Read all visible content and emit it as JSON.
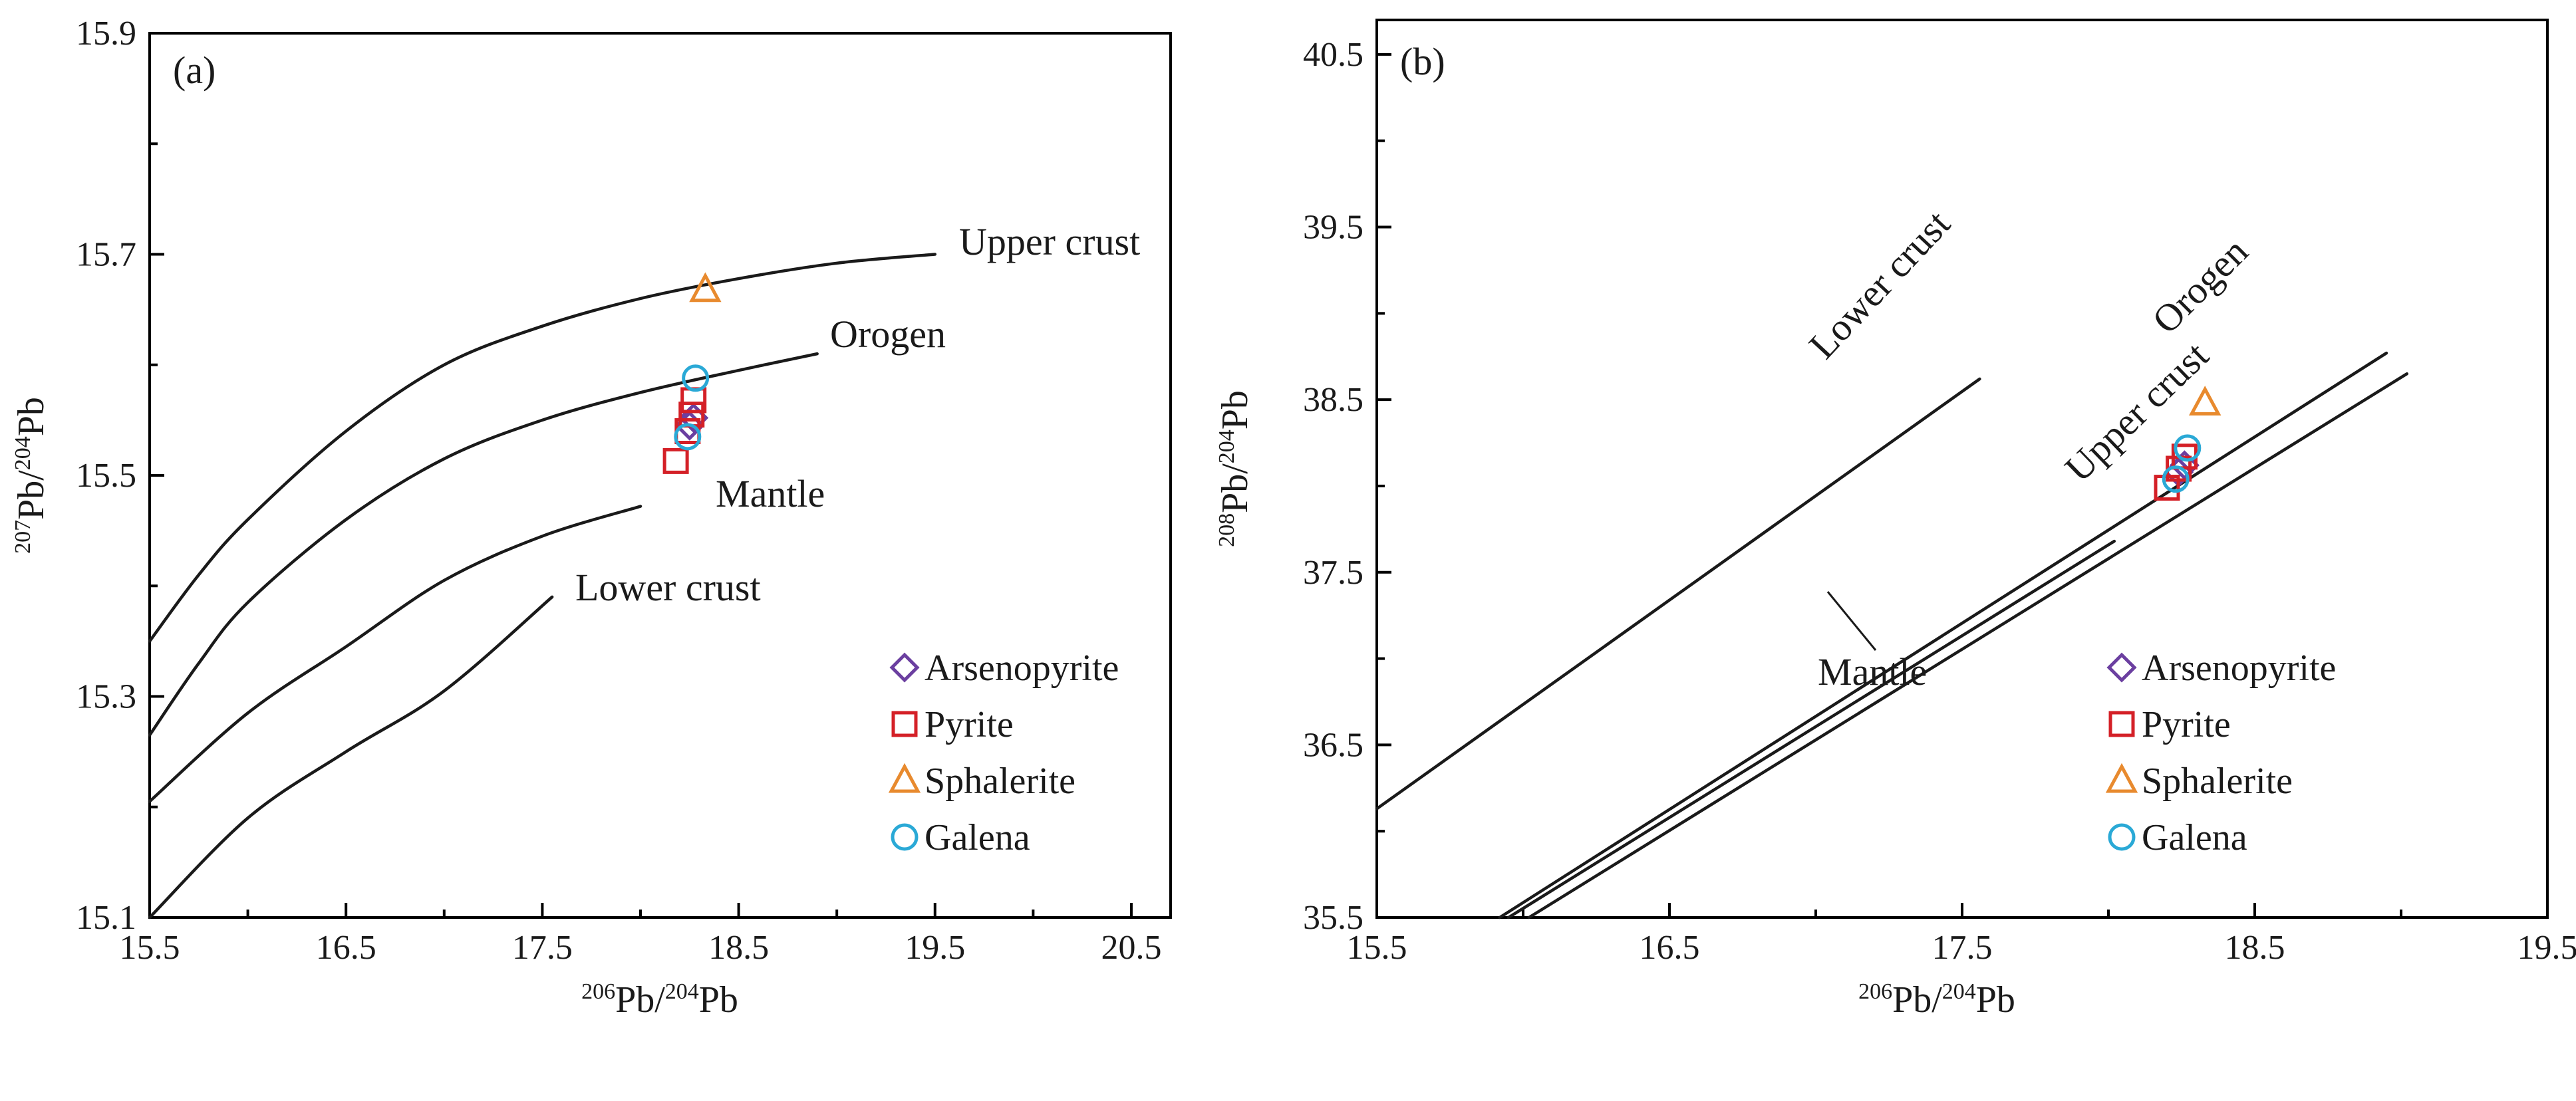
{
  "colors": {
    "arsenopyrite": "#6b3fa0",
    "pyrite": "#d42027",
    "sphalerite": "#e88a2e",
    "galena": "#2aa9d6",
    "curve": "#1a1a1a"
  },
  "legend": [
    "Arsenopyrite",
    "Pyrite",
    "Sphalerite",
    "Galena"
  ],
  "chart_data": [
    {
      "type": "scatter",
      "panel_label": "(a)",
      "xlabel": {
        "sup": "206",
        "main": "Pb/",
        "sup2": "204",
        "tail": "Pb"
      },
      "ylabel": {
        "sup": "207",
        "main": "Pb/",
        "sup2": "204",
        "tail": "Pb"
      },
      "xlim": [
        15.5,
        20.7
      ],
      "ylim": [
        15.1,
        15.9
      ],
      "xticks": [
        "15.5",
        "16.5",
        "17.5",
        "18.5",
        "19.5",
        "20.5"
      ],
      "yticks": [
        "15.1",
        "15.3",
        "15.5",
        "15.7",
        "15.9"
      ],
      "curves": [
        {
          "name": "Upper crust",
          "points": [
            [
              15.5,
              15.35
            ],
            [
              15.75,
              15.41
            ],
            [
              16.0,
              15.46
            ],
            [
              16.5,
              15.54
            ],
            [
              17.0,
              15.6
            ],
            [
              17.5,
              15.635
            ],
            [
              18.0,
              15.66
            ],
            [
              18.5,
              15.678
            ],
            [
              19.0,
              15.692
            ],
            [
              19.5,
              15.7
            ]
          ]
        },
        {
          "name": "Orogen",
          "points": [
            [
              15.5,
              15.265
            ],
            [
              15.75,
              15.33
            ],
            [
              16.0,
              15.385
            ],
            [
              16.5,
              15.46
            ],
            [
              17.0,
              15.515
            ],
            [
              17.5,
              15.55
            ],
            [
              18.0,
              15.575
            ],
            [
              18.5,
              15.595
            ],
            [
              18.9,
              15.61
            ]
          ]
        },
        {
          "name": "Mantle",
          "points": [
            [
              15.5,
              15.205
            ],
            [
              16.0,
              15.285
            ],
            [
              16.5,
              15.345
            ],
            [
              17.0,
              15.405
            ],
            [
              17.5,
              15.445
            ],
            [
              18.0,
              15.472
            ]
          ]
        },
        {
          "name": "Lower crust",
          "points": [
            [
              15.5,
              15.1
            ],
            [
              16.0,
              15.19
            ],
            [
              16.5,
              15.25
            ],
            [
              17.0,
              15.305
            ],
            [
              17.55,
              15.39
            ]
          ]
        }
      ],
      "series": [
        {
          "name": "Arsenopyrite",
          "marker": "diamond",
          "points": [
            [
              18.25,
              15.545
            ],
            [
              18.27,
              15.552
            ]
          ]
        },
        {
          "name": "Pyrite",
          "marker": "square",
          "points": [
            [
              18.18,
              15.513
            ],
            [
              18.24,
              15.54
            ],
            [
              18.26,
              15.555
            ],
            [
              18.27,
              15.568
            ]
          ]
        },
        {
          "name": "Sphalerite",
          "marker": "triangle",
          "points": [
            [
              18.33,
              15.668
            ]
          ]
        },
        {
          "name": "Galena",
          "marker": "circle",
          "points": [
            [
              18.28,
              15.588
            ],
            [
              18.24,
              15.535
            ]
          ]
        }
      ]
    },
    {
      "type": "scatter",
      "panel_label": "(b)",
      "xlabel": {
        "sup": "206",
        "main": "Pb/",
        "sup2": "204",
        "tail": "Pb"
      },
      "ylabel": {
        "sup": "208",
        "main": "Pb/",
        "sup2": "204",
        "tail": "Pb"
      },
      "xlim": [
        15.5,
        19.5
      ],
      "ylim": [
        35.5,
        40.7
      ],
      "xticks": [
        "15.5",
        "16.5",
        "17.5",
        "18.5",
        "19.5"
      ],
      "yticks": [
        "35.5",
        "36.5",
        "37.5",
        "38.5",
        "39.5",
        "40.5"
      ],
      "curves": [
        {
          "name": "Lower crust",
          "points": [
            [
              15.5,
              36.13
            ],
            [
              17.56,
              38.62
            ]
          ]
        },
        {
          "name": "Orogen",
          "points": [
            [
              15.92,
              35.5
            ],
            [
              18.95,
              38.77
            ]
          ]
        },
        {
          "name": "Upper crust",
          "points": [
            [
              16.02,
              35.5
            ],
            [
              19.02,
              38.65
            ]
          ]
        },
        {
          "name": "Mantle",
          "points": [
            [
              15.95,
              35.5
            ],
            [
              18.02,
              37.68
            ]
          ]
        }
      ],
      "series": [
        {
          "name": "Arsenopyrite",
          "marker": "diamond",
          "points": [
            [
              18.24,
              38.08
            ],
            [
              18.26,
              38.12
            ]
          ]
        },
        {
          "name": "Pyrite",
          "marker": "square",
          "points": [
            [
              18.2,
              37.99
            ],
            [
              18.24,
              38.1
            ],
            [
              18.26,
              38.17
            ]
          ]
        },
        {
          "name": "Sphalerite",
          "marker": "triangle",
          "points": [
            [
              18.33,
              38.48
            ]
          ]
        },
        {
          "name": "Galena",
          "marker": "circle",
          "points": [
            [
              18.27,
              38.22
            ],
            [
              18.23,
              38.04
            ]
          ]
        }
      ]
    }
  ]
}
